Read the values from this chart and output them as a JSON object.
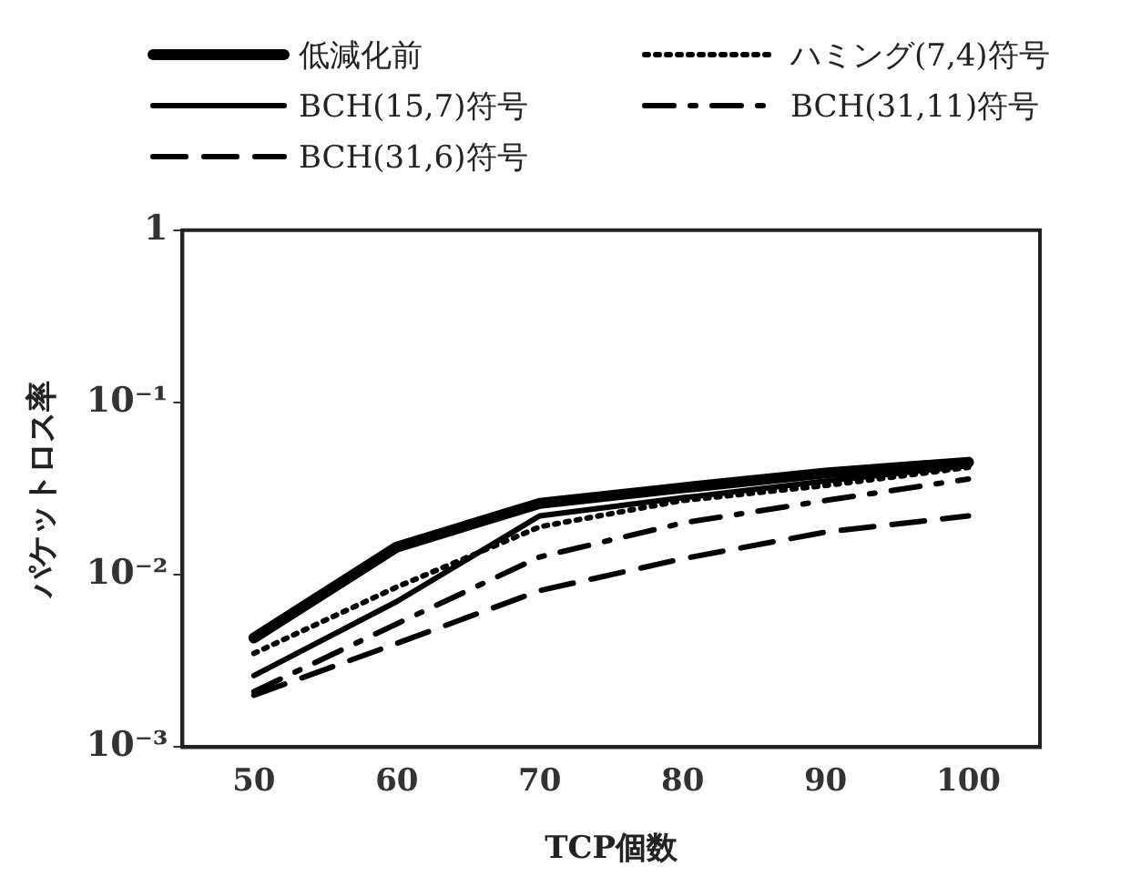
{
  "chart_data": {
    "type": "line",
    "xlabel": "TCP個数",
    "ylabel": "パケットロス率",
    "x": [
      50,
      60,
      70,
      80,
      90,
      100
    ],
    "xlim": [
      45,
      105
    ],
    "xticks": [
      50,
      60,
      70,
      80,
      90,
      100
    ],
    "ylim": [
      0.001,
      1
    ],
    "yticks": [
      {
        "value": 0.001,
        "label": "10⁻³"
      },
      {
        "value": 0.01,
        "label": "10⁻²"
      },
      {
        "value": 0.1,
        "label": "10⁻¹"
      },
      1
    ],
    "log": "y",
    "grid": false,
    "legend": "top",
    "marker": "none",
    "series": [
      {
        "name": "低減化前",
        "color": "#000000",
        "line_style": "solid",
        "values": [
          0.0043,
          0.0145,
          0.026,
          0.032,
          0.039,
          0.045
        ]
      },
      {
        "name": "BCH(15,7)符号",
        "color": "#000000",
        "line_style": "solid",
        "values": [
          0.0026,
          0.007,
          0.022,
          0.028,
          0.035,
          0.043
        ]
      },
      {
        "name": "BCH(31,6)符号",
        "color": "#000000",
        "line_style": "dashed",
        "values": [
          0.002,
          0.004,
          0.0081,
          0.0124,
          0.0177,
          0.022
        ]
      },
      {
        "name": "ハミング(7,4)符号",
        "color": "#000000",
        "line_style": "dotted",
        "values": [
          0.0035,
          0.0085,
          0.019,
          0.027,
          0.033,
          0.042
        ]
      },
      {
        "name": "BCH(31,11)符号",
        "color": "#000000",
        "line_style": "dashdot",
        "values": [
          0.0021,
          0.0052,
          0.0127,
          0.02,
          0.027,
          0.036
        ]
      }
    ]
  }
}
